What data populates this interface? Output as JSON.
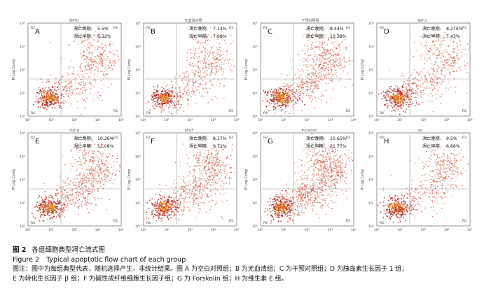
{
  "panels": [
    {
      "letter": "A",
      "title": "SMT0",
      "late_label": "凋亡晚期:",
      "late_value": "5.5%",
      "early_label": "凋亡早期:",
      "early_value": "6.32%",
      "ylabel": "PI Log Comp",
      "density": "low"
    },
    {
      "letter": "B",
      "title": "无血清对照",
      "late_label": "凋亡晚期:",
      "late_value": "7.14%",
      "early_label": "凋亡早期:",
      "early_value": "7.98%",
      "ylabel": "PI Log Comp",
      "density": "low"
    },
    {
      "letter": "C",
      "title": "干预对照组",
      "late_label": "凋亡晚期:",
      "late_value": "8.44%",
      "early_label": "凋亡早期:",
      "early_value": "10.39%",
      "ylabel": "PI Log Comp",
      "density": "mid"
    },
    {
      "letter": "D",
      "title": "IGF-1",
      "late_label": "凋亡晚期:",
      "late_value": "8.275%",
      "early_label": "凋亡早期:",
      "early_value": "7.43%",
      "ylabel": "PI Log Comp",
      "density": "low"
    },
    {
      "letter": "E",
      "title": "TGF-β",
      "late_label": "凋亡晚期:",
      "late_value": "10.26%",
      "early_label": "凋亡早期:",
      "early_value": "11.08%",
      "ylabel": "PI Log Comp",
      "density": "mid"
    },
    {
      "letter": "F",
      "title": "bFGF",
      "late_label": "凋亡晚期:",
      "late_value": "8.37%",
      "early_label": "凋亡早期:",
      "early_value": "9.72%",
      "ylabel": "PI Log Comp",
      "density": "mid"
    },
    {
      "letter": "G",
      "title": "Forskolin",
      "late_label": "凋亡晚期:",
      "late_value": "10.65%",
      "early_label": "凋亡早期:",
      "early_value": "21.77%",
      "ylabel": "PI Log Comp",
      "density": "high"
    },
    {
      "letter": "H",
      "title": "Ve",
      "late_label": "凋亡晚期:",
      "late_value": "9.5%",
      "early_label": "凋亡早期:",
      "early_value": "6.88%",
      "ylabel": "PI Log Comp",
      "density": "low"
    }
  ],
  "region_labels": {
    "R2": "R2",
    "R3": "R3",
    "R4": "R4",
    "R5": "R5"
  },
  "tick_labels": [
    "10⁰",
    "10¹",
    "10²",
    "10³",
    "10⁴"
  ],
  "colors": {
    "dot_dark": "#b01818",
    "dot_mid": "#cc3a2a",
    "dot_light": "#d98a6a",
    "core": "#e06a10",
    "core_hot": "#f0b020",
    "gate": "#999999",
    "axis": "#777777"
  },
  "caption": {
    "cn_label": "图 2",
    "cn_title": "各组细胞典型凋亡流式图",
    "en_label": "Figure 2",
    "en_title": "Typical apoptotic flow chart of each group",
    "note_line1": "图注：图中为每组典型代表，随机选择产生，非统计结果。图 A 为空白对照组；B 为无血清组；C 为干预对照组；D 为胰岛素生长因子 1 组；",
    "note_line2": "E 为转化生长因子 β 组；F 为碱性成纤维细胞生长因子组；G 为 Forskolin 组；H 为维生素 E 组。"
  }
}
